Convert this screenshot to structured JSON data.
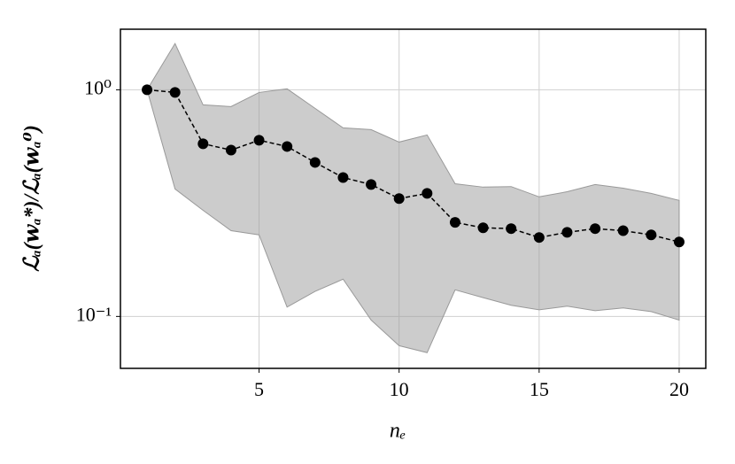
{
  "chart_data": {
    "type": "line",
    "xlabel": "nₑ",
    "ylabel": "ℒₐ(𝒘ₐ*)/ℒₐ(𝒘ₐ⁰)",
    "x": [
      1,
      2,
      3,
      4,
      5,
      6,
      7,
      8,
      9,
      10,
      11,
      12,
      13,
      14,
      15,
      16,
      17,
      18,
      19,
      20
    ],
    "values": [
      1.0,
      0.973,
      0.578,
      0.542,
      0.599,
      0.562,
      0.478,
      0.41,
      0.382,
      0.331,
      0.349,
      0.26,
      0.246,
      0.244,
      0.223,
      0.235,
      0.244,
      0.239,
      0.229,
      0.213
    ],
    "band_upper": [
      1.0,
      1.6,
      0.858,
      0.843,
      0.973,
      1.01,
      0.828,
      0.679,
      0.667,
      0.588,
      0.632,
      0.385,
      0.372,
      0.374,
      0.337,
      0.355,
      0.382,
      0.368,
      0.349,
      0.325
    ],
    "band_lower": [
      1.0,
      0.365,
      0.294,
      0.239,
      0.229,
      0.11,
      0.129,
      0.146,
      0.0964,
      0.0743,
      0.0692,
      0.131,
      0.121,
      0.112,
      0.107,
      0.111,
      0.106,
      0.109,
      0.105,
      0.0964
    ],
    "color": "#000000",
    "band_color": "#999999",
    "xlim": [
      0.05,
      20.95
    ],
    "xticks": [
      5,
      10,
      15,
      20
    ],
    "ylim": [
      0.059,
      1.85
    ],
    "yscale": "log",
    "yticks": [
      {
        "value": 0.1,
        "label": "10⁻¹"
      },
      {
        "value": 1,
        "label": "10⁰"
      }
    ],
    "grid": true
  }
}
